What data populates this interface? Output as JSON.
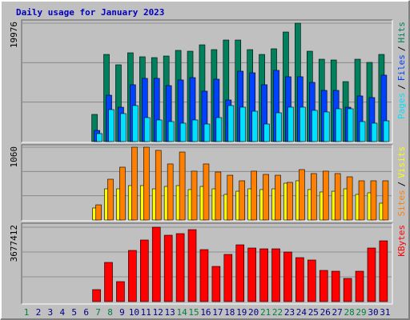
{
  "chart_data": [
    {
      "type": "bar",
      "title": "Daily usage for January 2023",
      "legend_separator": "/",
      "series": [
        {
          "name": "Hits",
          "color": "#00805c",
          "values": [
            null,
            null,
            null,
            null,
            null,
            null,
            4590,
            14710,
            12960,
            14980,
            14310,
            14170,
            14440,
            15390,
            15250,
            16330,
            15520,
            17140,
            17140,
            15520,
            14710,
            15660,
            18490,
            19976,
            15250,
            13900,
            13770,
            10120,
            13900,
            13360,
            14710
          ]
        },
        {
          "name": "Files",
          "color": "#0040ff",
          "values": [
            null,
            null,
            null,
            null,
            null,
            null,
            1890,
            7830,
            5800,
            9590,
            10670,
            10670,
            9450,
            10400,
            10800,
            8510,
            10530,
            7020,
            11880,
            11610,
            9590,
            12020,
            10940,
            10940,
            9990,
            8640,
            8640,
            5800,
            7700,
            7430,
            11210
          ]
        },
        {
          "name": "Pages",
          "color": "#00e0ff",
          "values": [
            null,
            null,
            null,
            null,
            null,
            null,
            1350,
            5400,
            4730,
            6080,
            4050,
            3650,
            3380,
            3110,
            3650,
            2970,
            4050,
            6080,
            5810,
            5130,
            2970,
            4860,
            5810,
            5810,
            5270,
            5000,
            5540,
            5540,
            3380,
            3110,
            3510
          ]
        }
      ],
      "ylim": [
        0,
        19976
      ],
      "yticks": [
        19976
      ]
    },
    {
      "type": "bar",
      "legend_separator": "/",
      "series": [
        {
          "name": "Visits",
          "color": "#ffff00",
          "values": [
            null,
            null,
            null,
            null,
            null,
            null,
            175,
            454,
            454,
            501,
            501,
            454,
            489,
            501,
            443,
            489,
            454,
            373,
            419,
            454,
            443,
            454,
            536,
            571,
            443,
            408,
            419,
            454,
            373,
            396,
            245
          ]
        },
        {
          "name": "Sites",
          "color": "#ff8000",
          "values": [
            null,
            null,
            null,
            null,
            null,
            null,
            221,
            594,
            769,
            1060,
            1060,
            1014,
            816,
            990,
            711,
            816,
            699,
            652,
            571,
            711,
            664,
            652,
            548,
            734,
            676,
            711,
            676,
            629,
            571,
            571,
            571
          ]
        }
      ],
      "ylim": [
        0,
        1060
      ],
      "yticks": [
        1060
      ]
    },
    {
      "type": "bar",
      "categories": [
        "1",
        "2",
        "3",
        "4",
        "5",
        "6",
        "7",
        "8",
        "9",
        "10",
        "11",
        "12",
        "13",
        "14",
        "15",
        "16",
        "17",
        "18",
        "19",
        "20",
        "21",
        "22",
        "23",
        "24",
        "25",
        "26",
        "27",
        "28",
        "29",
        "30",
        "31"
      ],
      "category_colors": [
        "#008040",
        "#000080",
        "#000080",
        "#000080",
        "#000080",
        "#000080",
        "#008040",
        "#008040",
        "#000080",
        "#000080",
        "#000080",
        "#000080",
        "#000080",
        "#008040",
        "#008040",
        "#000080",
        "#000080",
        "#000080",
        "#000080",
        "#000080",
        "#008040",
        "#008040",
        "#000080",
        "#000080",
        "#000080",
        "#000080",
        "#000080",
        "#008040",
        "#008040",
        "#000080",
        "#000080"
      ],
      "series": [
        {
          "name": "KBytes",
          "color": "#ff0000",
          "values": [
            null,
            null,
            null,
            null,
            null,
            null,
            593130,
            1937560,
            988550,
            2530690,
            3044730,
            3677412,
            3281990,
            3361070,
            3558780,
            2570230,
            1739850,
            2332980,
            2807480,
            2649310,
            2609770,
            2609770,
            2451600,
            2174810,
            2056180,
            1542140,
            1502600,
            1146720,
            1502600,
            2649310,
            3005190
          ]
        }
      ],
      "ylim": [
        0,
        3677412
      ],
      "yticks": [
        3677412
      ]
    }
  ]
}
